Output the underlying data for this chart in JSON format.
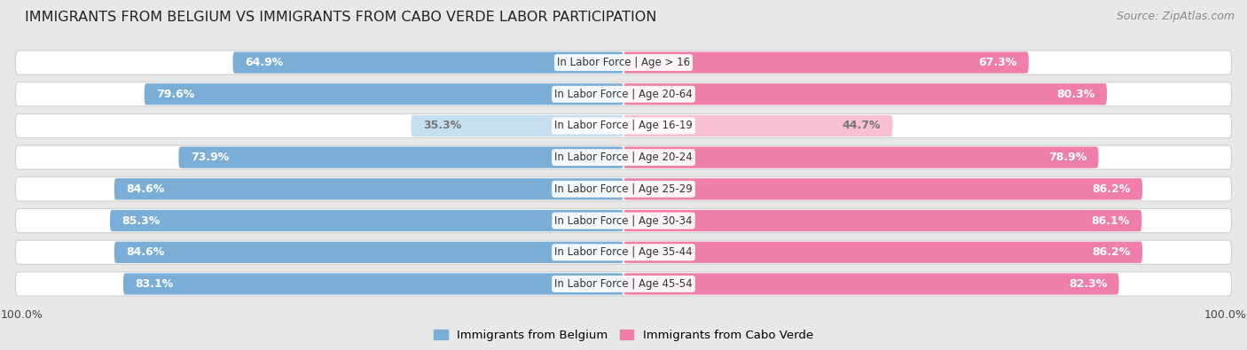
{
  "title": "IMMIGRANTS FROM BELGIUM VS IMMIGRANTS FROM CABO VERDE LABOR PARTICIPATION",
  "source": "Source: ZipAtlas.com",
  "categories": [
    "In Labor Force | Age > 16",
    "In Labor Force | Age 20-64",
    "In Labor Force | Age 16-19",
    "In Labor Force | Age 20-24",
    "In Labor Force | Age 25-29",
    "In Labor Force | Age 30-34",
    "In Labor Force | Age 35-44",
    "In Labor Force | Age 45-54"
  ],
  "belgium_values": [
    64.9,
    79.6,
    35.3,
    73.9,
    84.6,
    85.3,
    84.6,
    83.1
  ],
  "caboverde_values": [
    67.3,
    80.3,
    44.7,
    78.9,
    86.2,
    86.1,
    86.2,
    82.3
  ],
  "belgium_color": "#7aaed6",
  "caboverde_color": "#f07eaa",
  "belgium_light_color": "#c5dff0",
  "caboverde_light_color": "#f9c0d5",
  "label_white": "#ffffff",
  "label_dark": "#777777",
  "background_color": "#e8e8e8",
  "row_background": "#ffffff",
  "title_fontsize": 11.5,
  "source_fontsize": 9,
  "bar_label_fontsize": 9,
  "category_fontsize": 8.5,
  "legend_fontsize": 9.5,
  "max_value": 100.0,
  "low_threshold": 50.0,
  "axis_label_fontsize": 9
}
